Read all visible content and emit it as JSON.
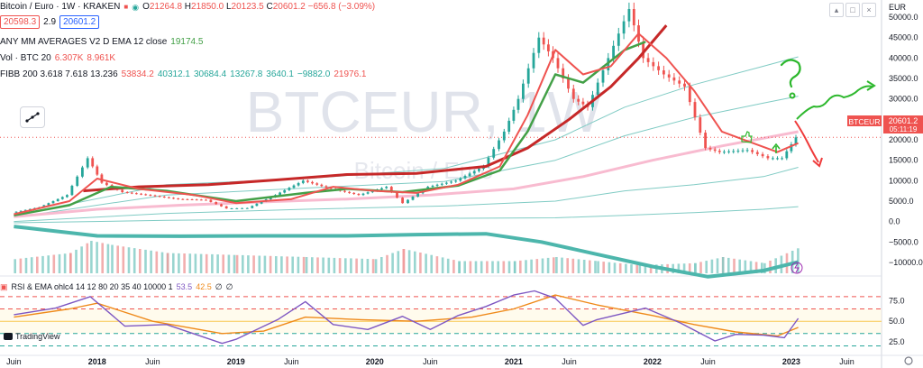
{
  "header": {
    "symbol": "Bitcoin / Euro · 1W · KRAKEN",
    "o_label": "O",
    "o": "21264.8",
    "h_label": "H",
    "h": "21850.0",
    "l_label": "L",
    "l": "20123.5",
    "c_label": "C",
    "c": "20601.2",
    "change": "−656.8 (−3.09%)",
    "sell": "20598.3",
    "spread": "2.9",
    "buy": "20601.2"
  },
  "indicators": {
    "ma": {
      "label": "ANY MM AVERAGES V2 D EMA 12 close",
      "value": "19174.5"
    },
    "vol": {
      "label": "Vol · BTC 20",
      "v1": "6.307K",
      "v2": "8.961K"
    },
    "fibb": {
      "label": "FIBB 200 3.618 7.618 13.236",
      "values": [
        "53834.2",
        "40312.1",
        "30684.4",
        "13267.8",
        "3640.1",
        "−9882.0",
        "21976.1"
      ]
    },
    "rsi": {
      "label": "RSI & EMA ohlc4 14 12 80 20 35 40 10000 1",
      "v1": "53.5",
      "v2": "42.5",
      "v3": "∅",
      "v4": "∅"
    }
  },
  "watermark": {
    "main": "BTCEUR, 1W",
    "sub": "Bitcoin / Euro"
  },
  "price_tag": {
    "label": "BTCEUR",
    "value": "20601.2",
    "countdown": "05:11:19"
  },
  "currency": "EUR",
  "branding": "TradingView",
  "colors": {
    "up": "#26a69a",
    "down": "#ef5350",
    "ema_fast": "#ef5350",
    "ema_green": "#43a047",
    "ema_slow": "#c62828",
    "pink": "#f8bbd0",
    "teal_band": "#4db6ac",
    "rsi": "#7e57c2",
    "rsi_ema": "#ef8a1a",
    "annotation": "#2eb82e"
  },
  "chart_data": {
    "type": "line",
    "symbol": "BTCEUR",
    "timeframe": "1W",
    "x_ticks": [
      "Juin",
      "2018",
      "Juin",
      "2019",
      "Juin",
      "2020",
      "Juin",
      "2021",
      "Juin",
      "2022",
      "Juin",
      "2023",
      "Juin"
    ],
    "y_ticks": [
      "50000.0",
      "45000.0",
      "40000.0",
      "35000.0",
      "30000.0",
      "25000.0",
      "20000.0",
      "15000.0",
      "10000.0",
      "5000.0",
      "0.0",
      "−5000.0",
      "−10000.0"
    ],
    "ylim": [
      -12000,
      52000
    ],
    "rsi_ticks": [
      "75.0",
      "50.0",
      "25.0"
    ],
    "rsi_ylim": [
      15,
      92
    ],
    "rsi_levels": [
      80,
      65,
      50,
      35,
      20
    ],
    "price": {
      "x": [
        2017.4,
        2017.6,
        2017.8,
        2017.95,
        2018.05,
        2018.2,
        2018.4,
        2018.6,
        2018.8,
        2018.95,
        2019.1,
        2019.3,
        2019.5,
        2019.7,
        2019.9,
        2020.1,
        2020.22,
        2020.4,
        2020.6,
        2020.8,
        2020.95,
        2021.05,
        2021.2,
        2021.3,
        2021.45,
        2021.55,
        2021.7,
        2021.85,
        2021.95,
        2022.1,
        2022.25,
        2022.4,
        2022.5,
        2022.7,
        2022.85,
        2022.95,
        2023.05
      ],
      "y": [
        2200,
        3500,
        6500,
        15500,
        9500,
        7200,
        6400,
        5500,
        5300,
        3200,
        3300,
        6500,
        10000,
        8000,
        6500,
        8500,
        4500,
        8500,
        10000,
        13500,
        22000,
        30000,
        45000,
        40000,
        30000,
        28000,
        40000,
        52000,
        40000,
        36000,
        33000,
        18000,
        17000,
        17500,
        15500,
        15500,
        20600
      ]
    },
    "ema_fast": {
      "x": [
        2017.4,
        2017.8,
        2018.0,
        2018.3,
        2018.7,
        2019.0,
        2019.4,
        2019.7,
        2020.0,
        2020.3,
        2020.6,
        2020.9,
        2021.1,
        2021.3,
        2021.5,
        2021.7,
        2021.9,
        2022.1,
        2022.3,
        2022.5,
        2022.7,
        2022.9,
        2023.05
      ],
      "y": [
        1800,
        5000,
        10500,
        8000,
        6500,
        4500,
        5500,
        8500,
        7500,
        7000,
        9000,
        13500,
        26000,
        42000,
        36000,
        38000,
        46000,
        40000,
        32000,
        22000,
        19500,
        17000,
        19174.5
      ]
    },
    "ema_green": {
      "x": [
        2017.4,
        2017.8,
        2018.1,
        2018.5,
        2019.0,
        2019.5,
        2019.8,
        2020.2,
        2020.6,
        2020.9,
        2021.1,
        2021.3,
        2021.5,
        2021.8,
        2021.95
      ],
      "y": [
        1500,
        4000,
        8500,
        7500,
        5000,
        7000,
        8000,
        7200,
        8800,
        12500,
        22000,
        36000,
        34000,
        42000,
        44000
      ]
    },
    "ema_slow": {
      "x": [
        2017.9,
        2018.3,
        2018.8,
        2019.3,
        2019.8,
        2020.3,
        2020.8,
        2021.1,
        2021.4,
        2021.7,
        2021.9,
        2022.1
      ],
      "y": [
        7500,
        8500,
        9000,
        10200,
        11500,
        11800,
        13500,
        18000,
        25000,
        33000,
        40000,
        48000
      ]
    },
    "pink_ma": {
      "x": [
        2017.4,
        2018.0,
        2018.6,
        2019.2,
        2019.8,
        2020.4,
        2021.0,
        2021.5,
        2022.0,
        2022.5,
        2023.05
      ],
      "y": [
        1200,
        3000,
        4000,
        4800,
        5500,
        6500,
        8000,
        11000,
        15000,
        18500,
        21976.1
      ]
    },
    "fib_upper": {
      "x": [
        2017.4,
        2018.5,
        2019.5,
        2020.5,
        2021.3,
        2021.8,
        2022.3,
        2022.8,
        2023.05
      ],
      "y": [
        1500,
        9000,
        10500,
        13000,
        20000,
        28000,
        33500,
        38000,
        40312.1
      ]
    },
    "fib_mid": {
      "x": [
        2017.4,
        2018.5,
        2019.5,
        2020.5,
        2021.3,
        2021.8,
        2022.3,
        2022.8,
        2023.05
      ],
      "y": [
        1000,
        6500,
        8200,
        9800,
        15000,
        21000,
        25500,
        29000,
        30684.4
      ]
    },
    "fib_low": {
      "x": [
        2017.4,
        2018.5,
        2019.5,
        2020.5,
        2021.3,
        2021.8,
        2022.3,
        2022.8,
        2023.05
      ],
      "y": [
        0,
        2000,
        3000,
        3800,
        5000,
        7500,
        9000,
        11000,
        13267.8
      ]
    },
    "fib_lower": {
      "x": [
        2017.4,
        2018.5,
        2019.5,
        2020.5,
        2021.3,
        2021.8,
        2022.3,
        2022.8,
        2023.05
      ],
      "y": [
        -300,
        300,
        600,
        800,
        900,
        1500,
        2200,
        3000,
        3640.1
      ]
    },
    "teal_band": {
      "x": [
        2017.4,
        2018.0,
        2018.6,
        2019.2,
        2019.8,
        2020.3,
        2020.8,
        2021.2,
        2021.6,
        2022.0,
        2022.4,
        2022.8,
        2023.05
      ],
      "y": [
        -1200,
        -3500,
        -3600,
        -3500,
        -3500,
        -3200,
        -3000,
        -5000,
        -8000,
        -11000,
        -13500,
        -12000,
        -9882.0
      ]
    },
    "volume": {
      "x": [
        2017.4,
        2017.8,
        2017.95,
        2018.1,
        2018.5,
        2019.0,
        2019.5,
        2020.0,
        2020.2,
        2020.6,
        2021.0,
        2021.3,
        2021.6,
        2021.9,
        2022.3,
        2022.5,
        2022.8,
        2023.05
      ],
      "y": [
        3.5,
        5,
        8,
        7,
        5,
        4.5,
        4,
        3.5,
        6,
        3,
        3,
        4,
        3,
        2,
        2.5,
        4,
        2.5,
        6.307
      ]
    },
    "rsi": {
      "x": [
        2017.4,
        2017.7,
        2017.95,
        2018.2,
        2018.5,
        2018.9,
        2019.0,
        2019.3,
        2019.5,
        2019.7,
        2019.95,
        2020.2,
        2020.4,
        2020.6,
        2020.8,
        2021.0,
        2021.15,
        2021.3,
        2021.5,
        2021.6,
        2021.8,
        2021.95,
        2022.2,
        2022.45,
        2022.6,
        2022.8,
        2022.95,
        2023.05
      ],
      "y": [
        58,
        66,
        80,
        44,
        46,
        23,
        28,
        52,
        74,
        46,
        40,
        56,
        40,
        57,
        68,
        82,
        87,
        78,
        45,
        52,
        60,
        66,
        48,
        26,
        34,
        33,
        30,
        53.5
      ]
    },
    "rsi_ema": {
      "x": [
        2017.4,
        2017.8,
        2018.0,
        2018.4,
        2018.9,
        2019.2,
        2019.5,
        2019.9,
        2020.3,
        2020.7,
        2021.0,
        2021.3,
        2021.6,
        2022.0,
        2022.3,
        2022.6,
        2022.9,
        2023.05
      ],
      "y": [
        55,
        65,
        72,
        50,
        35,
        38,
        55,
        52,
        50,
        55,
        65,
        82,
        70,
        57,
        46,
        37,
        32,
        42.5
      ]
    }
  }
}
